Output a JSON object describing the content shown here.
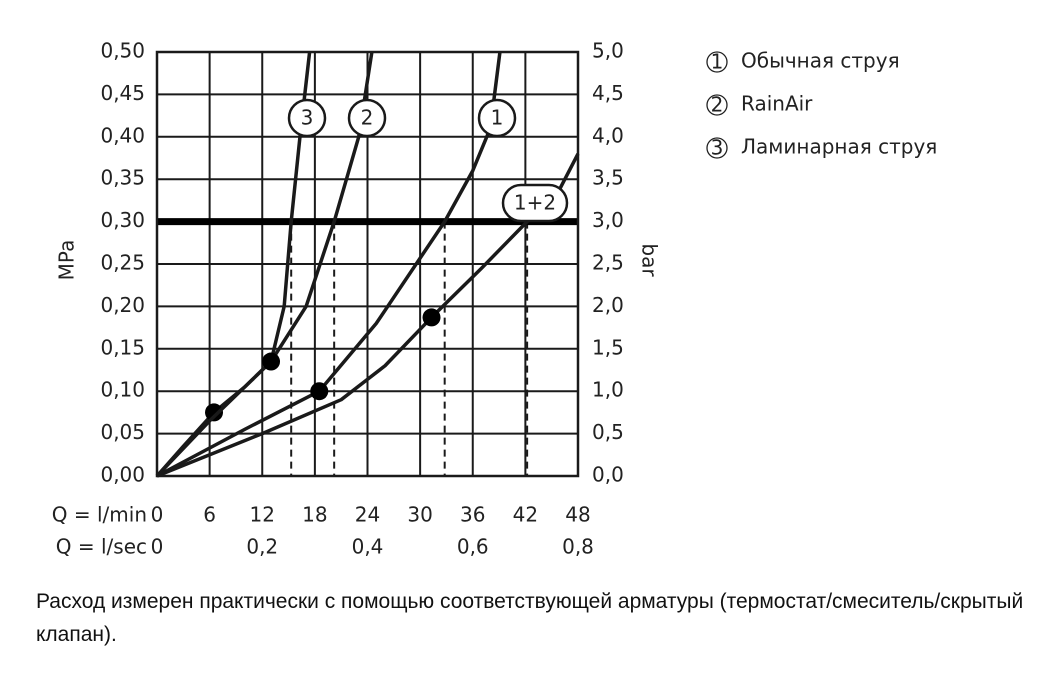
{
  "chart_data": {
    "type": "line",
    "xlabel": "Q = l/min",
    "x2label": "Q = l/sec",
    "ylabel": "MPa",
    "y2label": "bar",
    "xlim": [
      0,
      48
    ],
    "xticks": [
      0,
      6,
      12,
      18,
      24,
      30,
      36,
      42,
      48
    ],
    "x2lim": [
      0,
      0.8
    ],
    "x2ticks": [
      {
        "value": 0,
        "label": "0"
      },
      {
        "value": 0.2,
        "label": "0,2"
      },
      {
        "value": 0.4,
        "label": "0,4"
      },
      {
        "value": 0.6,
        "label": "0,6"
      },
      {
        "value": 0.8,
        "label": "0,8"
      }
    ],
    "ylim": [
      0,
      0.5
    ],
    "yticks": [
      {
        "value": 0,
        "label": "0,00"
      },
      {
        "value": 0.05,
        "label": "0,05"
      },
      {
        "value": 0.1,
        "label": "0,10"
      },
      {
        "value": 0.15,
        "label": "0,15"
      },
      {
        "value": 0.2,
        "label": "0,20"
      },
      {
        "value": 0.25,
        "label": "0,25"
      },
      {
        "value": 0.3,
        "label": "0,30"
      },
      {
        "value": 0.35,
        "label": "0,35"
      },
      {
        "value": 0.4,
        "label": "0,40"
      },
      {
        "value": 0.45,
        "label": "0,45"
      },
      {
        "value": 0.5,
        "label": "0,50"
      }
    ],
    "y2lim": [
      0,
      5
    ],
    "y2ticks": [
      {
        "value": 0,
        "label": "0,0"
      },
      {
        "value": 0.5,
        "label": "0,5"
      },
      {
        "value": 1,
        "label": "1,0"
      },
      {
        "value": 1.5,
        "label": "1,5"
      },
      {
        "value": 2,
        "label": "2,0"
      },
      {
        "value": 2.5,
        "label": "2,5"
      },
      {
        "value": 3,
        "label": "3,0"
      },
      {
        "value": 3.5,
        "label": "3,5"
      },
      {
        "value": 4,
        "label": "4,0"
      },
      {
        "value": 4.5,
        "label": "4,5"
      },
      {
        "value": 5,
        "label": "5,0"
      }
    ],
    "grid": true,
    "color": "#1a1a1a",
    "reference_y": 0.3,
    "dashed_x": [
      15.3,
      20.2,
      32.8,
      42.2
    ],
    "series": [
      {
        "label": "3",
        "name": "Ламинарная струя",
        "x": [
          0,
          3,
          6.5,
          10,
          13,
          14.5,
          15.3,
          16.3,
          17.4
        ],
        "y": [
          0,
          0.035,
          0.075,
          0.105,
          0.135,
          0.2,
          0.3,
          0.4,
          0.5
        ],
        "marker_x": 6.5,
        "marker_y": 0.075
      },
      {
        "label": "2",
        "name": "RainAir",
        "x": [
          0,
          6,
          13,
          17,
          20.2,
          23,
          24.5
        ],
        "y": [
          0,
          0.065,
          0.135,
          0.2,
          0.3,
          0.4,
          0.5
        ],
        "marker_x": 13,
        "marker_y": 0.135
      },
      {
        "label": "1",
        "name": "Обычная струя",
        "x": [
          0,
          10,
          18.5,
          25,
          32.8,
          36,
          38,
          39.1
        ],
        "y": [
          0,
          0.055,
          0.1,
          0.18,
          0.3,
          0.36,
          0.41,
          0.5
        ],
        "marker_x": 18.5,
        "marker_y": 0.1
      },
      {
        "label": "1+2",
        "x": [
          0,
          12,
          21,
          26,
          31.3,
          37,
          42.2,
          46,
          48
        ],
        "y": [
          0,
          0.05,
          0.09,
          0.13,
          0.187,
          0.245,
          0.3,
          0.34,
          0.38
        ],
        "marker_x": 31.3,
        "marker_y": 0.187
      }
    ]
  },
  "note": "Расход измерен практически с помощью соответствующей арматуры (термостат/смеситель/скрытый клапан)."
}
